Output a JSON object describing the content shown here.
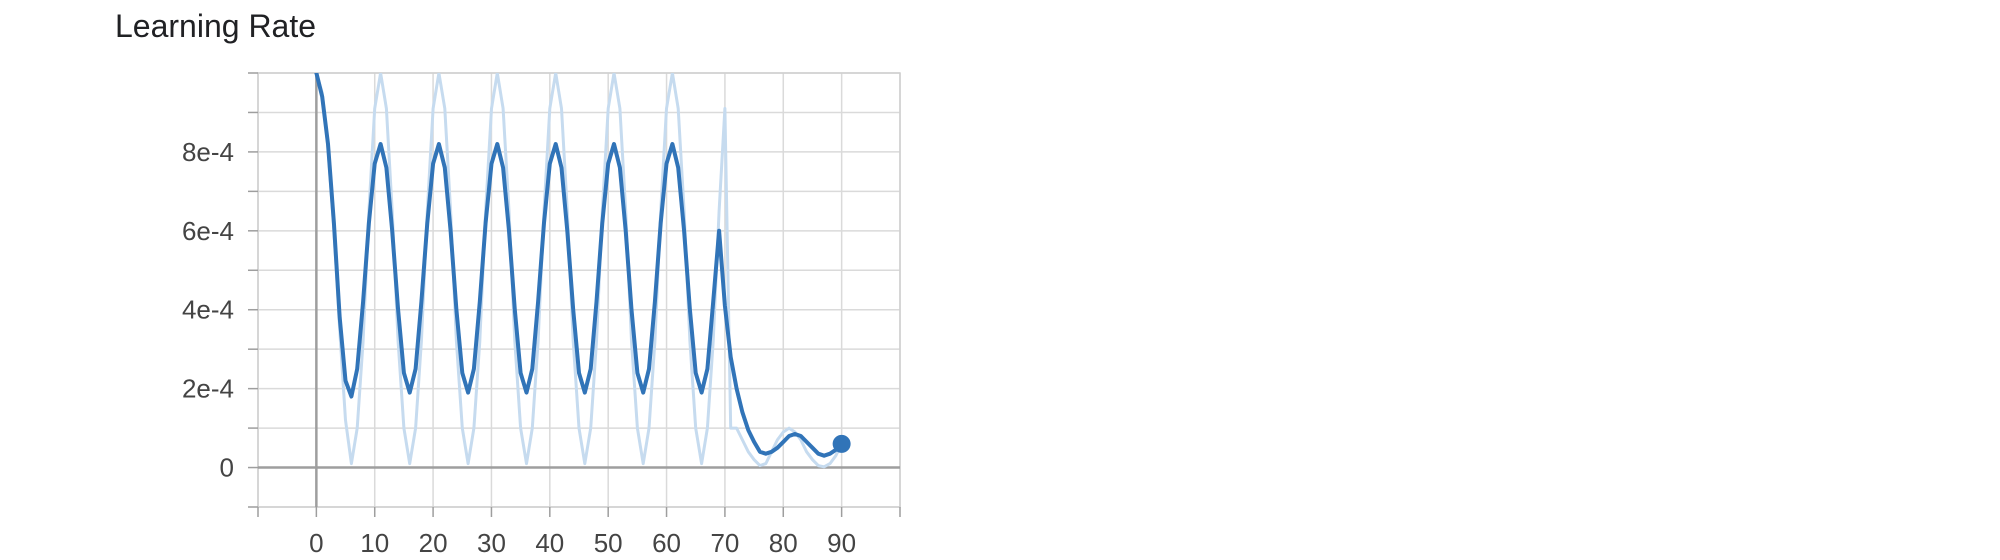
{
  "card": {
    "title": "Learning Rate"
  },
  "chart_data": {
    "type": "line",
    "title": "Learning Rate",
    "xlabel": "",
    "ylabel": "",
    "xlim": [
      -10,
      100
    ],
    "ylim": [
      -0.0001,
      0.001
    ],
    "x_ticks": [
      0,
      10,
      20,
      30,
      40,
      50,
      60,
      70,
      80,
      90
    ],
    "x_tick_labels": [
      "0",
      "10",
      "20",
      "30",
      "40",
      "50",
      "60",
      "70",
      "80",
      "90"
    ],
    "y_ticks": [
      0,
      0.0002,
      0.0004,
      0.0006,
      0.0008
    ],
    "y_tick_labels": [
      "0",
      "2e-4",
      "4e-4",
      "6e-4",
      "8e-4"
    ],
    "grid": true,
    "series": [
      {
        "role": "raw",
        "color": "#c6dbef",
        "x": [
          0,
          1,
          2,
          3,
          4,
          5,
          6,
          7,
          8,
          9,
          10,
          11,
          12,
          13,
          14,
          15,
          16,
          17,
          18,
          19,
          20,
          21,
          22,
          23,
          24,
          25,
          26,
          27,
          28,
          29,
          30,
          31,
          32,
          33,
          34,
          35,
          36,
          37,
          38,
          39,
          40,
          41,
          42,
          43,
          44,
          45,
          46,
          47,
          48,
          49,
          50,
          51,
          52,
          53,
          54,
          55,
          56,
          57,
          58,
          59,
          60,
          61,
          62,
          63,
          64,
          65,
          66,
          67,
          68,
          69,
          70,
          71,
          72,
          73,
          74,
          75,
          76,
          77,
          78,
          79,
          80,
          81,
          82,
          83,
          84,
          85,
          86,
          87,
          88,
          89,
          90
        ],
        "y": [
          0.001,
          0.00095,
          0.00081,
          0.0006,
          0.00035,
          0.00012,
          1e-05,
          0.0001,
          0.00032,
          0.00065,
          0.00091,
          0.001,
          0.00091,
          0.00065,
          0.00032,
          0.0001,
          1e-05,
          0.0001,
          0.00032,
          0.00065,
          0.00091,
          0.001,
          0.00091,
          0.00065,
          0.00032,
          0.0001,
          1e-05,
          0.0001,
          0.00032,
          0.00065,
          0.00091,
          0.001,
          0.00091,
          0.00065,
          0.00032,
          0.0001,
          1e-05,
          0.0001,
          0.00032,
          0.00065,
          0.00091,
          0.001,
          0.00091,
          0.00065,
          0.00032,
          0.0001,
          1e-05,
          0.0001,
          0.00032,
          0.00065,
          0.00091,
          0.001,
          0.00091,
          0.00065,
          0.00032,
          0.0001,
          1e-05,
          0.0001,
          0.00032,
          0.00065,
          0.00091,
          0.001,
          0.00091,
          0.00065,
          0.00032,
          0.0001,
          1e-05,
          0.0001,
          0.00032,
          0.00065,
          0.00091,
          0.0001,
          0.0001,
          7e-05,
          4e-05,
          2e-05,
          5e-06,
          1e-05,
          4e-05,
          7e-05,
          9e-05,
          0.0001,
          9e-05,
          7e-05,
          4e-05,
          2e-05,
          5e-06,
          2e-06,
          1e-05,
          3e-05,
          6e-05
        ]
      },
      {
        "role": "smoothed",
        "color": "#3174b8",
        "x": [
          0,
          1,
          2,
          3,
          4,
          5,
          6,
          7,
          8,
          9,
          10,
          11,
          12,
          13,
          14,
          15,
          16,
          17,
          18,
          19,
          20,
          21,
          22,
          23,
          24,
          25,
          26,
          27,
          28,
          29,
          30,
          31,
          32,
          33,
          34,
          35,
          36,
          37,
          38,
          39,
          40,
          41,
          42,
          43,
          44,
          45,
          46,
          47,
          48,
          49,
          50,
          51,
          52,
          53,
          54,
          55,
          56,
          57,
          58,
          59,
          60,
          61,
          62,
          63,
          64,
          65,
          66,
          67,
          68,
          69,
          70,
          71,
          72,
          73,
          74,
          75,
          76,
          77,
          78,
          79,
          80,
          81,
          82,
          83,
          84,
          85,
          86,
          87,
          88,
          89,
          90
        ],
        "y": [
          0.001,
          0.00094,
          0.00082,
          0.00062,
          0.00038,
          0.00022,
          0.00018,
          0.00025,
          0.00042,
          0.00062,
          0.00077,
          0.00082,
          0.00076,
          0.0006,
          0.0004,
          0.00024,
          0.00019,
          0.00025,
          0.00042,
          0.00062,
          0.00077,
          0.00082,
          0.00076,
          0.0006,
          0.0004,
          0.00024,
          0.00019,
          0.00025,
          0.00042,
          0.00062,
          0.00077,
          0.00082,
          0.00076,
          0.0006,
          0.0004,
          0.00024,
          0.00019,
          0.00025,
          0.00042,
          0.00062,
          0.00077,
          0.00082,
          0.00076,
          0.0006,
          0.0004,
          0.00024,
          0.00019,
          0.00025,
          0.00042,
          0.00062,
          0.00077,
          0.00082,
          0.00076,
          0.0006,
          0.0004,
          0.00024,
          0.00019,
          0.00025,
          0.00042,
          0.00062,
          0.00077,
          0.00082,
          0.00076,
          0.0006,
          0.0004,
          0.00024,
          0.00019,
          0.00025,
          0.00042,
          0.0006,
          0.00041,
          0.00028,
          0.0002,
          0.00014,
          9.5e-05,
          6.5e-05,
          4e-05,
          3.5e-05,
          4e-05,
          5e-05,
          6.5e-05,
          8e-05,
          8.5e-05,
          8e-05,
          6.5e-05,
          5e-05,
          3.5e-05,
          3e-05,
          3.5e-05,
          4.5e-05,
          6e-05
        ],
        "last_point": {
          "x": 90,
          "y": 6e-05
        }
      }
    ]
  }
}
